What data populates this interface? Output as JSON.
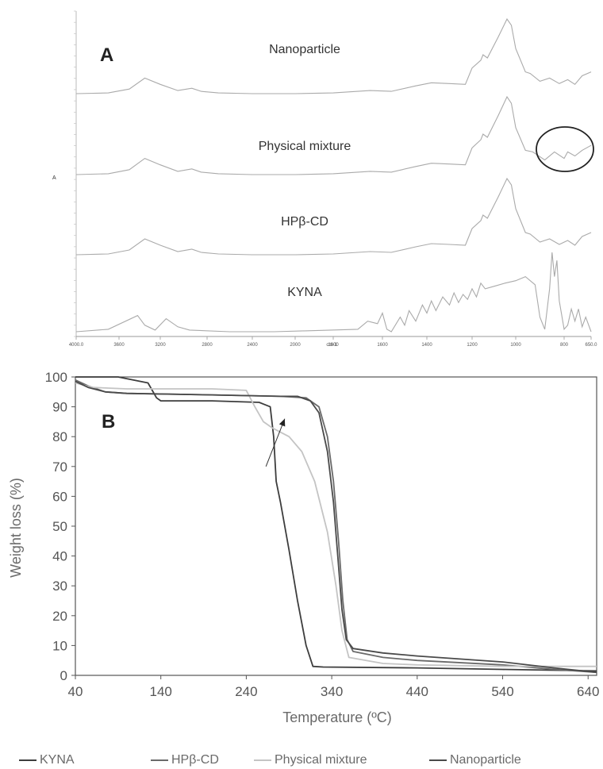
{
  "chart_data": [
    {
      "type": "line",
      "panel_label": "A",
      "xlabel": "cm-1",
      "y_axis_label": "A",
      "x_ticks": [
        "4000.0",
        "3600",
        "3200",
        "2800",
        "2400",
        "2000",
        "1800",
        "1600",
        "1400",
        "1200",
        "1000",
        "800",
        "650.0"
      ],
      "series": [
        {
          "name": "Nanoparticle",
          "values": [
            [
              4000,
              0.02
            ],
            [
              3700,
              0.03
            ],
            [
              3500,
              0.08
            ],
            [
              3350,
              0.22
            ],
            [
              3200,
              0.14
            ],
            [
              3050,
              0.06
            ],
            [
              2930,
              0.09
            ],
            [
              2850,
              0.05
            ],
            [
              2700,
              0.03
            ],
            [
              2400,
              0.02
            ],
            [
              2000,
              0.02
            ],
            [
              1800,
              0.03
            ],
            [
              1650,
              0.06
            ],
            [
              1560,
              0.05
            ],
            [
              1450,
              0.12
            ],
            [
              1380,
              0.16
            ],
            [
              1300,
              0.15
            ],
            [
              1230,
              0.14
            ],
            [
              1200,
              0.35
            ],
            [
              1160,
              0.45
            ],
            [
              1150,
              0.52
            ],
            [
              1130,
              0.48
            ],
            [
              1080,
              0.75
            ],
            [
              1040,
              0.98
            ],
            [
              1020,
              0.9
            ],
            [
              1000,
              0.6
            ],
            [
              960,
              0.3
            ],
            [
              940,
              0.28
            ],
            [
              900,
              0.18
            ],
            [
              860,
              0.22
            ],
            [
              820,
              0.15
            ],
            [
              780,
              0.2
            ],
            [
              740,
              0.14
            ],
            [
              700,
              0.25
            ],
            [
              650,
              0.3
            ]
          ]
        },
        {
          "name": "Physical mixture",
          "values": [
            [
              4000,
              0.02
            ],
            [
              3700,
              0.03
            ],
            [
              3500,
              0.08
            ],
            [
              3350,
              0.22
            ],
            [
              3200,
              0.14
            ],
            [
              3050,
              0.06
            ],
            [
              2930,
              0.09
            ],
            [
              2850,
              0.05
            ],
            [
              2700,
              0.03
            ],
            [
              2400,
              0.02
            ],
            [
              2000,
              0.02
            ],
            [
              1800,
              0.03
            ],
            [
              1650,
              0.06
            ],
            [
              1560,
              0.05
            ],
            [
              1450,
              0.12
            ],
            [
              1380,
              0.16
            ],
            [
              1300,
              0.15
            ],
            [
              1230,
              0.14
            ],
            [
              1200,
              0.35
            ],
            [
              1160,
              0.45
            ],
            [
              1150,
              0.52
            ],
            [
              1130,
              0.48
            ],
            [
              1080,
              0.75
            ],
            [
              1040,
              0.98
            ],
            [
              1020,
              0.9
            ],
            [
              1000,
              0.6
            ],
            [
              960,
              0.32
            ],
            [
              930,
              0.3
            ],
            [
              880,
              0.2
            ],
            [
              840,
              0.3
            ],
            [
              800,
              0.22
            ],
            [
              780,
              0.3
            ],
            [
              740,
              0.25
            ],
            [
              700,
              0.32
            ],
            [
              650,
              0.38
            ]
          ]
        },
        {
          "name": "HPβ-CD",
          "values": [
            [
              4000,
              0.02
            ],
            [
              3700,
              0.03
            ],
            [
              3500,
              0.08
            ],
            [
              3350,
              0.22
            ],
            [
              3200,
              0.14
            ],
            [
              3050,
              0.06
            ],
            [
              2930,
              0.09
            ],
            [
              2850,
              0.05
            ],
            [
              2700,
              0.03
            ],
            [
              2400,
              0.02
            ],
            [
              2000,
              0.02
            ],
            [
              1800,
              0.03
            ],
            [
              1650,
              0.06
            ],
            [
              1560,
              0.05
            ],
            [
              1450,
              0.12
            ],
            [
              1380,
              0.16
            ],
            [
              1300,
              0.15
            ],
            [
              1230,
              0.14
            ],
            [
              1200,
              0.35
            ],
            [
              1160,
              0.45
            ],
            [
              1150,
              0.52
            ],
            [
              1130,
              0.48
            ],
            [
              1080,
              0.75
            ],
            [
              1040,
              0.98
            ],
            [
              1020,
              0.9
            ],
            [
              1000,
              0.6
            ],
            [
              960,
              0.3
            ],
            [
              940,
              0.28
            ],
            [
              900,
              0.18
            ],
            [
              860,
              0.22
            ],
            [
              820,
              0.15
            ],
            [
              780,
              0.2
            ],
            [
              740,
              0.14
            ],
            [
              700,
              0.25
            ],
            [
              650,
              0.3
            ]
          ]
        },
        {
          "name": "KYNA",
          "values": [
            [
              4000,
              0.02
            ],
            [
              3700,
              0.05
            ],
            [
              3420,
              0.22
            ],
            [
              3350,
              0.1
            ],
            [
              3250,
              0.04
            ],
            [
              3150,
              0.18
            ],
            [
              3050,
              0.08
            ],
            [
              2950,
              0.04
            ],
            [
              2600,
              0.02
            ],
            [
              2200,
              0.02
            ],
            [
              1950,
              0.03
            ],
            [
              1700,
              0.05
            ],
            [
              1660,
              0.15
            ],
            [
              1620,
              0.12
            ],
            [
              1600,
              0.25
            ],
            [
              1580,
              0.05
            ],
            [
              1560,
              0.02
            ],
            [
              1520,
              0.2
            ],
            [
              1500,
              0.1
            ],
            [
              1480,
              0.28
            ],
            [
              1450,
              0.15
            ],
            [
              1420,
              0.35
            ],
            [
              1400,
              0.25
            ],
            [
              1380,
              0.4
            ],
            [
              1360,
              0.28
            ],
            [
              1330,
              0.45
            ],
            [
              1300,
              0.35
            ],
            [
              1280,
              0.5
            ],
            [
              1260,
              0.38
            ],
            [
              1240,
              0.48
            ],
            [
              1220,
              0.42
            ],
            [
              1200,
              0.55
            ],
            [
              1180,
              0.45
            ],
            [
              1160,
              0.62
            ],
            [
              1140,
              0.55
            ],
            [
              1100,
              0.58
            ],
            [
              1050,
              0.62
            ],
            [
              1000,
              0.65
            ],
            [
              960,
              0.7
            ],
            [
              920,
              0.6
            ],
            [
              900,
              0.2
            ],
            [
              880,
              0.05
            ],
            [
              860,
              0.55
            ],
            [
              850,
              1.0
            ],
            [
              840,
              0.7
            ],
            [
              830,
              0.9
            ],
            [
              820,
              0.4
            ],
            [
              800,
              0.05
            ],
            [
              780,
              0.1
            ],
            [
              760,
              0.3
            ],
            [
              740,
              0.15
            ],
            [
              720,
              0.3
            ],
            [
              700,
              0.08
            ],
            [
              680,
              0.2
            ],
            [
              650,
              0.02
            ]
          ]
        }
      ]
    },
    {
      "type": "line",
      "panel_label": "B",
      "xlabel": "Temperature (ºC)",
      "ylabel": "Weight loss (%)",
      "xlim": [
        40,
        650
      ],
      "ylim": [
        0,
        100
      ],
      "x_ticks": [
        40,
        140,
        240,
        340,
        440,
        540,
        640
      ],
      "y_ticks": [
        0,
        10,
        20,
        30,
        40,
        50,
        60,
        70,
        80,
        90,
        100
      ],
      "grid": false,
      "legend_position": "bottom",
      "series": [
        {
          "name": "KYNA",
          "color": "#3d3d3d",
          "values": [
            [
              40,
              100
            ],
            [
              90,
              100
            ],
            [
              125,
              98
            ],
            [
              135,
              93
            ],
            [
              140,
              92
            ],
            [
              200,
              92
            ],
            [
              255,
              91.5
            ],
            [
              268,
              90
            ],
            [
              272,
              80
            ],
            [
              275,
              65
            ],
            [
              280,
              58
            ],
            [
              290,
              42
            ],
            [
              300,
              25
            ],
            [
              310,
              10
            ],
            [
              318,
              3
            ],
            [
              330,
              2.8
            ],
            [
              440,
              2.5
            ],
            [
              540,
              2
            ],
            [
              650,
              1.5
            ]
          ]
        },
        {
          "name": "HPβ-CD",
          "color": "#6a6a6a",
          "values": [
            [
              40,
              99
            ],
            [
              55,
              97
            ],
            [
              75,
              95
            ],
            [
              100,
              94.5
            ],
            [
              200,
              94
            ],
            [
              280,
              93.5
            ],
            [
              310,
              93
            ],
            [
              325,
              90
            ],
            [
              335,
              80
            ],
            [
              342,
              65
            ],
            [
              348,
              45
            ],
            [
              353,
              25
            ],
            [
              358,
              12
            ],
            [
              365,
              8
            ],
            [
              400,
              6
            ],
            [
              440,
              5
            ],
            [
              540,
              3.5
            ],
            [
              600,
              2
            ],
            [
              650,
              1
            ]
          ]
        },
        {
          "name": "Physical mixture",
          "color": "#c4c4c4",
          "values": [
            [
              40,
              98
            ],
            [
              60,
              96.5
            ],
            [
              100,
              96
            ],
            [
              200,
              96
            ],
            [
              240,
              95.5
            ],
            [
              250,
              90
            ],
            [
              260,
              85
            ],
            [
              270,
              83
            ],
            [
              290,
              80
            ],
            [
              305,
              75
            ],
            [
              320,
              65
            ],
            [
              335,
              48
            ],
            [
              345,
              30
            ],
            [
              352,
              15
            ],
            [
              360,
              6
            ],
            [
              400,
              4
            ],
            [
              440,
              3.5
            ],
            [
              540,
              3
            ],
            [
              650,
              3
            ]
          ]
        },
        {
          "name": "Nanoparticle",
          "color": "#4a4a4a",
          "values": [
            [
              40,
              98.5
            ],
            [
              55,
              96.5
            ],
            [
              75,
              95
            ],
            [
              100,
              94.5
            ],
            [
              200,
              94
            ],
            [
              280,
              93.5
            ],
            [
              300,
              93.5
            ],
            [
              315,
              92
            ],
            [
              325,
              88
            ],
            [
              335,
              75
            ],
            [
              342,
              58
            ],
            [
              347,
              40
            ],
            [
              352,
              22
            ],
            [
              357,
              12
            ],
            [
              365,
              9
            ],
            [
              400,
              7.5
            ],
            [
              440,
              6.5
            ],
            [
              540,
              4.5
            ],
            [
              600,
              2.5
            ],
            [
              650,
              1
            ]
          ]
        }
      ],
      "annotations": [
        {
          "type": "arrow",
          "from": [
            263,
            70
          ],
          "to": [
            285,
            86
          ]
        }
      ]
    }
  ]
}
